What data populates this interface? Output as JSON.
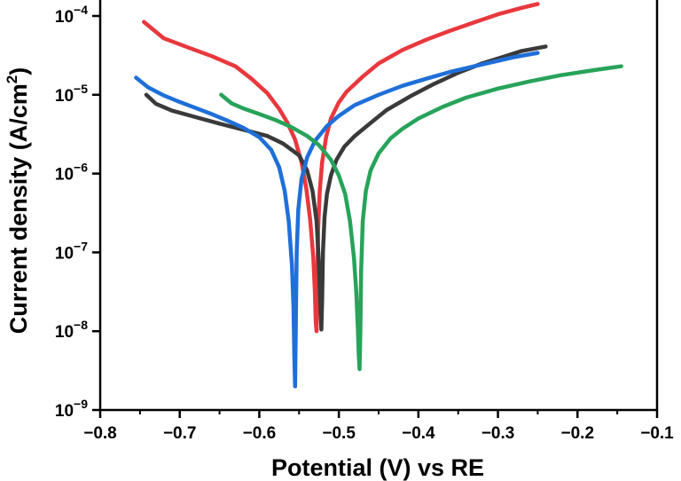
{
  "chart_data": {
    "type": "line",
    "title": "",
    "xlabel": "Potential (V) vs RE",
    "ylabel_main": "Current density (A/cm",
    "ylabel_sup": "2",
    "ylabel_close": ")",
    "xlim": [
      -0.8,
      -0.1
    ],
    "ylim_log10": [
      -9,
      -4
    ],
    "y_scale": "log",
    "x_ticks": [
      -0.8,
      -0.7,
      -0.6,
      -0.5,
      -0.4,
      -0.3,
      -0.2,
      -0.1
    ],
    "x_tick_labels": [
      "−0.8",
      "−0.7",
      "−0.6",
      "−0.5",
      "−0.4",
      "−0.3",
      "−0.2",
      "−0.1"
    ],
    "y_ticks": [
      {
        "base": "10",
        "exp": "−4",
        "value": 0.0001
      },
      {
        "base": "10",
        "exp": "−5",
        "value": 1e-05
      },
      {
        "base": "10",
        "exp": "−6",
        "value": 1e-06
      },
      {
        "base": "10",
        "exp": "−7",
        "value": 1e-07
      },
      {
        "base": "10",
        "exp": "−8",
        "value": 1e-08
      },
      {
        "base": "10",
        "exp": "−9",
        "value": 1e-09
      }
    ],
    "series": [
      {
        "name": "red",
        "color": "#e8383d",
        "ecorr": -0.528,
        "x": [
          -0.745,
          -0.72,
          -0.69,
          -0.66,
          -0.63,
          -0.61,
          -0.59,
          -0.575,
          -0.565,
          -0.555,
          -0.547,
          -0.541,
          -0.536,
          -0.532,
          -0.53,
          -0.529,
          -0.528,
          -0.527,
          -0.526,
          -0.524,
          -0.521,
          -0.516,
          -0.51,
          -0.5,
          -0.49,
          -0.47,
          -0.45,
          -0.42,
          -0.39,
          -0.36,
          -0.33,
          -0.3,
          -0.27,
          -0.25
        ],
        "y": [
          8.4e-05,
          5.2e-05,
          4e-05,
          3.1e-05,
          2.3e-05,
          1.6e-05,
          1.05e-05,
          6.6e-06,
          4.5e-06,
          2.7e-06,
          1.4e-06,
          6.5e-07,
          2.6e-07,
          8.5e-08,
          3e-08,
          1.3e-08,
          1e-08,
          4e-08,
          2e-07,
          6e-07,
          1.4e-06,
          2.9e-06,
          5e-06,
          8e-06,
          1.1e-05,
          1.7e-05,
          2.5e-05,
          3.7e-05,
          5e-05,
          6.5e-05,
          8.3e-05,
          0.000105,
          0.000127,
          0.000142
        ]
      },
      {
        "name": "black",
        "color": "#3a3a3a",
        "ecorr": -0.522,
        "x": [
          -0.742,
          -0.73,
          -0.71,
          -0.68,
          -0.65,
          -0.62,
          -0.59,
          -0.57,
          -0.55,
          -0.54,
          -0.533,
          -0.528,
          -0.525,
          -0.523,
          -0.522,
          -0.521,
          -0.52,
          -0.518,
          -0.515,
          -0.51,
          -0.503,
          -0.493,
          -0.48,
          -0.46,
          -0.44,
          -0.41,
          -0.38,
          -0.35,
          -0.32,
          -0.29,
          -0.27,
          -0.24
        ],
        "y": [
          1e-05,
          7.7e-06,
          6.3e-06,
          5.2e-06,
          4.3e-06,
          3.6e-06,
          3e-06,
          2.4e-06,
          1.7e-06,
          1.1e-06,
          6e-07,
          2.5e-07,
          7e-08,
          2e-08,
          1.05e-08,
          2.5e-08,
          1e-07,
          2.8e-07,
          5.5e-07,
          9.5e-07,
          1.5e-06,
          2.2e-06,
          3e-06,
          4.4e-06,
          6.4e-06,
          9.6e-06,
          1.38e-05,
          1.9e-05,
          2.5e-05,
          3.1e-05,
          3.6e-05,
          4.1e-05
        ]
      },
      {
        "name": "blue",
        "color": "#1f6fd8",
        "ecorr": -0.555,
        "x": [
          -0.755,
          -0.74,
          -0.72,
          -0.7,
          -0.68,
          -0.66,
          -0.64,
          -0.62,
          -0.6,
          -0.585,
          -0.575,
          -0.568,
          -0.563,
          -0.559,
          -0.557,
          -0.556,
          -0.555,
          -0.554,
          -0.553,
          -0.551,
          -0.547,
          -0.54,
          -0.53,
          -0.515,
          -0.5,
          -0.48,
          -0.45,
          -0.42,
          -0.39,
          -0.36,
          -0.33,
          -0.3,
          -0.28,
          -0.25
        ],
        "y": [
          1.65e-05,
          1.25e-05,
          9.8e-06,
          8.1e-06,
          6.8e-06,
          5.7e-06,
          4.7e-06,
          3.8e-06,
          2.9e-06,
          2e-06,
          1.2e-06,
          6e-07,
          2.5e-07,
          7e-08,
          2e-08,
          5e-09,
          2e-09,
          1.5e-08,
          1e-07,
          3.5e-07,
          8.5e-07,
          1.6e-06,
          2.6e-06,
          4e-06,
          5.4e-06,
          7.4e-06,
          1e-05,
          1.3e-05,
          1.6e-05,
          1.95e-05,
          2.3e-05,
          2.7e-05,
          3e-05,
          3.4e-05
        ]
      },
      {
        "name": "green",
        "color": "#27a35a",
        "ecorr": -0.474,
        "x": [
          -0.648,
          -0.635,
          -0.62,
          -0.6,
          -0.58,
          -0.56,
          -0.54,
          -0.525,
          -0.51,
          -0.5,
          -0.492,
          -0.486,
          -0.481,
          -0.478,
          -0.476,
          -0.475,
          -0.474,
          -0.473,
          -0.472,
          -0.47,
          -0.466,
          -0.46,
          -0.45,
          -0.435,
          -0.42,
          -0.4,
          -0.37,
          -0.34,
          -0.3,
          -0.26,
          -0.22,
          -0.18,
          -0.145
        ],
        "y": [
          1e-05,
          7.8e-06,
          6.7e-06,
          5.7e-06,
          4.8e-06,
          3.9e-06,
          3e-06,
          2.3e-06,
          1.5e-06,
          9.5e-07,
          5.5e-07,
          2.5e-07,
          8.5e-08,
          3e-08,
          1e-08,
          5e-09,
          3.3e-09,
          1e-08,
          6e-08,
          2.5e-07,
          6e-07,
          1.1e-06,
          1.8e-06,
          2.8e-06,
          3.7e-06,
          5e-06,
          7e-06,
          9.2e-06,
          1.2e-05,
          1.48e-05,
          1.78e-05,
          2.05e-05,
          2.3e-05
        ]
      }
    ]
  }
}
